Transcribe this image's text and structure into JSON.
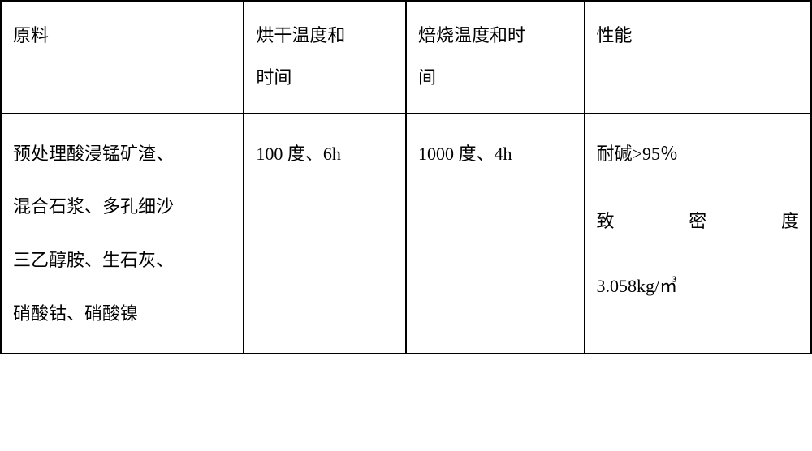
{
  "table": {
    "columns": [
      {
        "width": "30%"
      },
      {
        "width": "20%"
      },
      {
        "width": "22%"
      },
      {
        "width": "28%"
      }
    ],
    "header": {
      "col1": "原料",
      "col2_line1": "烘干温度和",
      "col2_line2": "时间",
      "col3_line1": "焙烧温度和时",
      "col3_line2": "间",
      "col4": "性能"
    },
    "row": {
      "col1_line1": "预处理酸浸锰矿渣、",
      "col1_line2": "混合石浆、多孔细沙",
      "col1_line3": "三乙醇胺、生石灰、",
      "col1_line4": "硝酸钴、硝酸镍",
      "col2": "100 度、6h",
      "col3": "1000 度、4h",
      "col4_line1": "耐碱>95％",
      "col4_line2_a": "致",
      "col4_line2_b": "密",
      "col4_line2_c": "度",
      "col4_line3": "3.058kg/㎥"
    },
    "styling": {
      "font_size": 22,
      "border_color": "#000000",
      "border_width": 2,
      "background_color": "#ffffff",
      "text_color": "#000000",
      "header_line_height": 2.2,
      "data_line_height": 2.8
    }
  }
}
